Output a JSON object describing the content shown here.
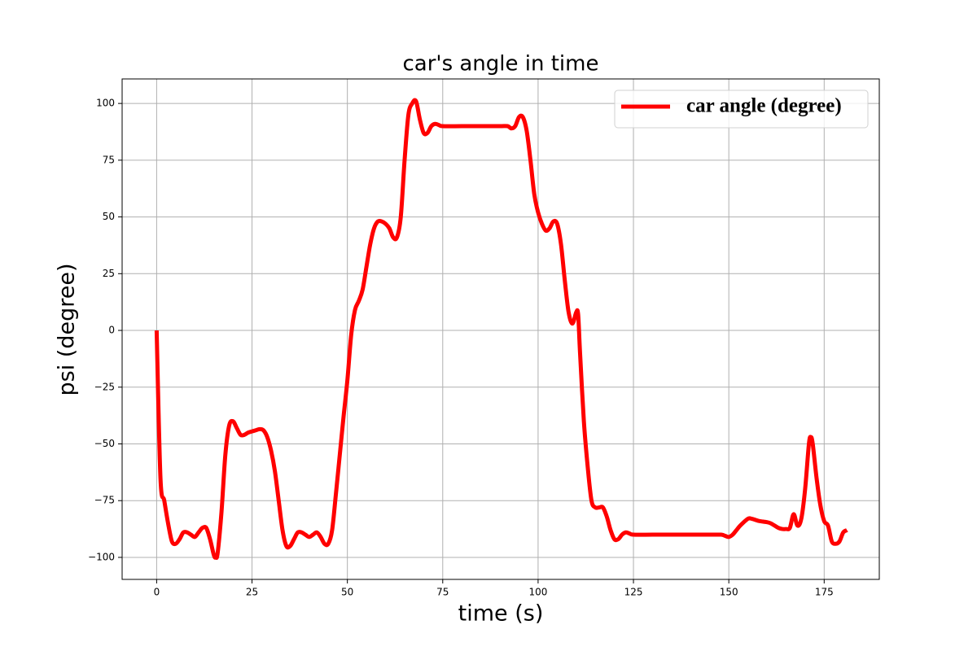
{
  "chart_data": {
    "type": "line",
    "title": "car's angle in time",
    "xlabel": "time (s)",
    "ylabel": "psi (degree)",
    "xlim": [
      -9.05,
      189.45
    ],
    "ylim": [
      -109.7,
      110.8
    ],
    "xticks": [
      0,
      25,
      50,
      75,
      100,
      125,
      150,
      175
    ],
    "yticks": [
      {
        "value": -100,
        "label": "−100"
      },
      {
        "value": -75,
        "label": "−75"
      },
      {
        "value": -50,
        "label": "−50"
      },
      {
        "value": -25,
        "label": "−25"
      },
      0,
      25,
      50,
      75,
      100
    ],
    "grid": true,
    "legend_loc": "upper right",
    "series": [
      {
        "name": "car angle (degree)",
        "color": "#ff0000",
        "x": [
          0,
          1,
          2,
          3,
          4,
          5,
          6,
          7,
          8,
          9,
          10,
          11,
          12,
          13,
          14,
          15,
          15.5,
          16,
          17,
          18,
          19,
          20,
          21,
          22,
          23,
          24,
          25,
          26,
          27,
          28,
          29,
          30,
          31,
          32,
          33,
          34,
          35,
          36,
          37,
          38,
          39,
          40,
          41,
          42,
          43,
          44,
          45,
          46,
          47,
          48,
          49,
          50,
          51,
          52,
          53,
          54,
          55,
          56,
          57,
          58,
          59,
          60,
          61,
          62,
          63,
          64,
          65,
          66,
          67,
          68,
          69,
          70,
          71,
          72,
          73,
          74,
          75,
          80,
          85,
          90,
          92,
          93,
          94,
          95,
          96,
          97,
          98,
          99,
          100,
          101,
          102,
          103,
          104,
          105,
          106,
          107,
          108,
          109,
          110,
          110.5,
          111,
          112,
          113,
          114,
          115,
          116,
          117,
          118,
          119,
          120,
          121,
          122,
          123,
          124,
          125,
          130,
          135,
          140,
          145,
          148,
          149,
          150,
          151,
          152,
          153,
          155,
          156,
          157,
          158,
          160,
          161,
          162,
          163,
          164,
          165,
          166,
          167,
          168,
          169,
          170,
          171,
          171.5,
          172,
          173,
          174,
          175,
          176,
          177,
          178,
          179,
          180,
          181
        ],
        "values": [
          0,
          -65,
          -75,
          -85,
          -93,
          -94,
          -92,
          -89,
          -89,
          -90,
          -91,
          -89,
          -87,
          -87,
          -92,
          -99,
          -100,
          -98,
          -80,
          -55,
          -42,
          -40,
          -43,
          -46,
          -46,
          -45,
          -44.5,
          -44,
          -43.5,
          -44,
          -47,
          -53,
          -62,
          -75,
          -88,
          -95,
          -95,
          -92,
          -89,
          -89,
          -90,
          -91,
          -90,
          -89,
          -91,
          -94,
          -94,
          -88,
          -72,
          -55,
          -38,
          -22,
          -2,
          9,
          13,
          18,
          28,
          38,
          45,
          48,
          48,
          47,
          45,
          41,
          41,
          50,
          75,
          95,
          100,
          101,
          93,
          87,
          87,
          90,
          91,
          90.5,
          90,
          90,
          90,
          90,
          90,
          89,
          90,
          94,
          94,
          88,
          75,
          60,
          52,
          47,
          44,
          45,
          48,
          47,
          38,
          22,
          8,
          3,
          8,
          7,
          -10,
          -40,
          -60,
          -75,
          -78,
          -78,
          -78,
          -82,
          -88,
          -92,
          -92,
          -90,
          -89,
          -89.5,
          -90,
          -90,
          -90,
          -90,
          -90,
          -90,
          -90.5,
          -91,
          -90,
          -88,
          -86,
          -83,
          -83,
          -83.5,
          -84,
          -84.5,
          -85,
          -86,
          -87,
          -87.5,
          -87.5,
          -87,
          -81,
          -86,
          -83,
          -70,
          -50,
          -47,
          -50,
          -65,
          -77,
          -84,
          -86,
          -93,
          -94,
          -93,
          -89,
          -88
        ]
      }
    ]
  }
}
